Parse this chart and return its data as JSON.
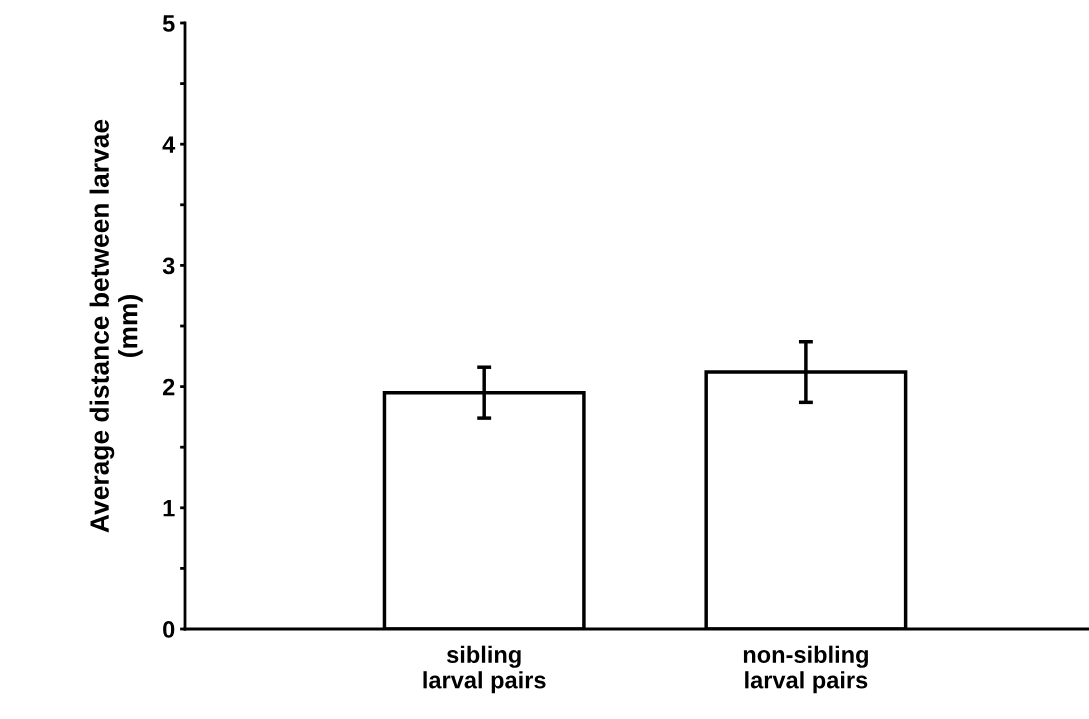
{
  "chart_data": {
    "type": "bar",
    "ylabel": "Average distance between larvae\n(mm)",
    "categories": [
      "sibling\nlarval pairs",
      "non-sibling\nlarval pairs"
    ],
    "values": [
      1.95,
      2.12
    ],
    "errors": [
      0.21,
      0.25
    ],
    "color": "#ffffff",
    "ylim": [
      0,
      5
    ],
    "yticks": [
      0,
      {
        "value": 0.5,
        "label": null
      },
      1,
      {
        "value": 1.5,
        "label": null
      },
      2,
      {
        "value": 2.5,
        "label": null
      },
      3,
      {
        "value": 3.5,
        "label": null
      },
      4,
      {
        "value": 4.5,
        "label": null
      },
      5
    ],
    "grid": false
  }
}
